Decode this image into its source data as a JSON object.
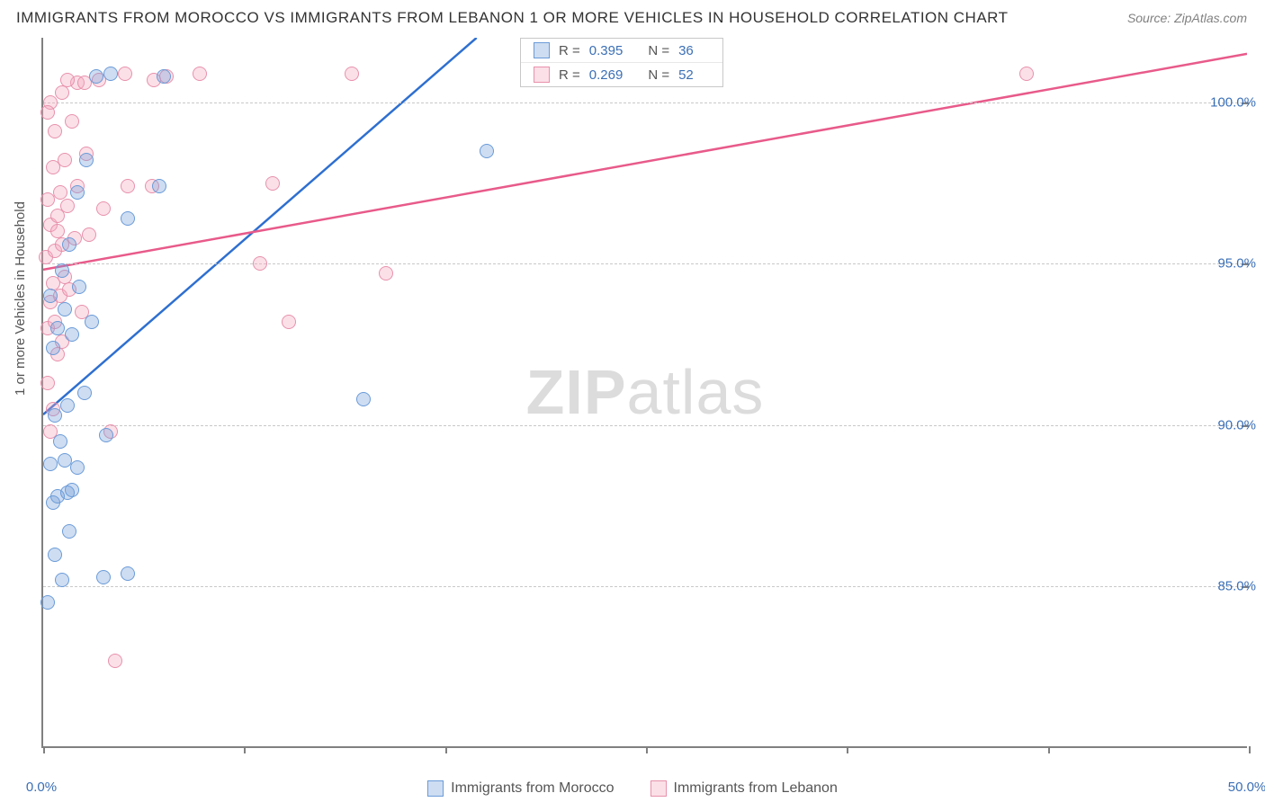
{
  "title": "IMMIGRANTS FROM MOROCCO VS IMMIGRANTS FROM LEBANON 1 OR MORE VEHICLES IN HOUSEHOLD CORRELATION CHART",
  "source": "Source: ZipAtlas.com",
  "watermark_bold": "ZIP",
  "watermark_rest": "atlas",
  "y_axis_title": "1 or more Vehicles in Household",
  "colors": {
    "blue_fill": "rgba(114,159,217,0.35)",
    "blue_stroke": "#6a9bd8",
    "pink_fill": "rgba(244,166,188,0.35)",
    "pink_stroke": "#e891ac",
    "blue_line": "#2e6fd0",
    "pink_line": "#e85a8a",
    "grid": "#c8c8c8",
    "axis": "#808080",
    "text_blue": "#3b6fb6"
  },
  "chart": {
    "type": "scatter",
    "xlim": [
      0,
      50
    ],
    "ylim": [
      80,
      102
    ],
    "y_ticks": [
      85,
      90,
      95,
      100
    ],
    "y_tick_labels": [
      "85.0%",
      "90.0%",
      "95.0%",
      "100.0%"
    ],
    "x_ticks": [
      0,
      8.33,
      16.67,
      25,
      33.33,
      41.67,
      50
    ],
    "x_labels": [
      [
        0,
        "0.0%"
      ],
      [
        50,
        "50.0%"
      ]
    ],
    "marker_radius": 8,
    "series": [
      {
        "name": "Immigrants from Morocco",
        "color_key": "blue",
        "r": "0.395",
        "n": "36",
        "trend": {
          "x1": 0,
          "y1": 90.3,
          "x2": 18,
          "y2": 102
        },
        "points": [
          [
            0.2,
            84.5
          ],
          [
            0.8,
            85.2
          ],
          [
            2.5,
            85.3
          ],
          [
            3.5,
            85.4
          ],
          [
            0.5,
            86.0
          ],
          [
            1.1,
            86.7
          ],
          [
            0.4,
            87.6
          ],
          [
            0.6,
            87.8
          ],
          [
            1.0,
            87.9
          ],
          [
            1.2,
            88.0
          ],
          [
            0.3,
            88.8
          ],
          [
            0.9,
            88.9
          ],
          [
            1.4,
            88.7
          ],
          [
            0.7,
            89.5
          ],
          [
            2.6,
            89.7
          ],
          [
            0.5,
            90.3
          ],
          [
            1.0,
            90.6
          ],
          [
            13.3,
            90.8
          ],
          [
            1.7,
            91.0
          ],
          [
            0.4,
            92.4
          ],
          [
            1.2,
            92.8
          ],
          [
            0.6,
            93.0
          ],
          [
            2.0,
            93.2
          ],
          [
            0.9,
            93.6
          ],
          [
            0.3,
            94.0
          ],
          [
            1.5,
            94.3
          ],
          [
            0.8,
            94.8
          ],
          [
            1.1,
            95.6
          ],
          [
            3.5,
            96.4
          ],
          [
            1.4,
            97.2
          ],
          [
            4.8,
            97.4
          ],
          [
            1.8,
            98.2
          ],
          [
            18.4,
            98.5
          ],
          [
            2.2,
            100.8
          ],
          [
            2.8,
            100.9
          ],
          [
            5.0,
            100.8
          ]
        ]
      },
      {
        "name": "Immigrants from Lebanon",
        "color_key": "pink",
        "r": "0.269",
        "n": "52",
        "trend": {
          "x1": 0,
          "y1": 94.8,
          "x2": 50,
          "y2": 101.5
        },
        "points": [
          [
            3.0,
            82.7
          ],
          [
            0.3,
            89.8
          ],
          [
            2.8,
            89.8
          ],
          [
            0.4,
            90.5
          ],
          [
            0.2,
            91.3
          ],
          [
            0.6,
            92.2
          ],
          [
            0.8,
            92.6
          ],
          [
            0.2,
            93.0
          ],
          [
            0.5,
            93.2
          ],
          [
            10.2,
            93.2
          ],
          [
            0.3,
            93.8
          ],
          [
            0.7,
            94.0
          ],
          [
            1.1,
            94.2
          ],
          [
            0.4,
            94.4
          ],
          [
            0.9,
            94.6
          ],
          [
            14.2,
            94.7
          ],
          [
            9.0,
            95.0
          ],
          [
            0.1,
            95.2
          ],
          [
            0.5,
            95.4
          ],
          [
            0.8,
            95.6
          ],
          [
            1.3,
            95.8
          ],
          [
            1.9,
            95.9
          ],
          [
            0.3,
            96.2
          ],
          [
            0.6,
            96.5
          ],
          [
            1.0,
            96.8
          ],
          [
            2.5,
            96.7
          ],
          [
            0.2,
            97.0
          ],
          [
            0.7,
            97.2
          ],
          [
            1.4,
            97.4
          ],
          [
            3.5,
            97.4
          ],
          [
            4.5,
            97.4
          ],
          [
            9.5,
            97.5
          ],
          [
            0.4,
            98.0
          ],
          [
            0.9,
            98.2
          ],
          [
            1.8,
            98.4
          ],
          [
            0.5,
            99.1
          ],
          [
            1.2,
            99.4
          ],
          [
            0.3,
            100.0
          ],
          [
            0.8,
            100.3
          ],
          [
            1.4,
            100.6
          ],
          [
            1.7,
            100.6
          ],
          [
            2.3,
            100.7
          ],
          [
            3.4,
            100.9
          ],
          [
            4.6,
            100.7
          ],
          [
            5.1,
            100.8
          ],
          [
            6.5,
            100.9
          ],
          [
            12.8,
            100.9
          ],
          [
            1.0,
            100.7
          ],
          [
            40.8,
            100.9
          ],
          [
            0.2,
            99.7
          ],
          [
            0.6,
            96.0
          ],
          [
            1.6,
            93.5
          ]
        ]
      }
    ]
  },
  "legend_bottom": [
    {
      "label": "Immigrants from Morocco",
      "color_key": "blue"
    },
    {
      "label": "Immigrants from Lebanon",
      "color_key": "pink"
    }
  ]
}
